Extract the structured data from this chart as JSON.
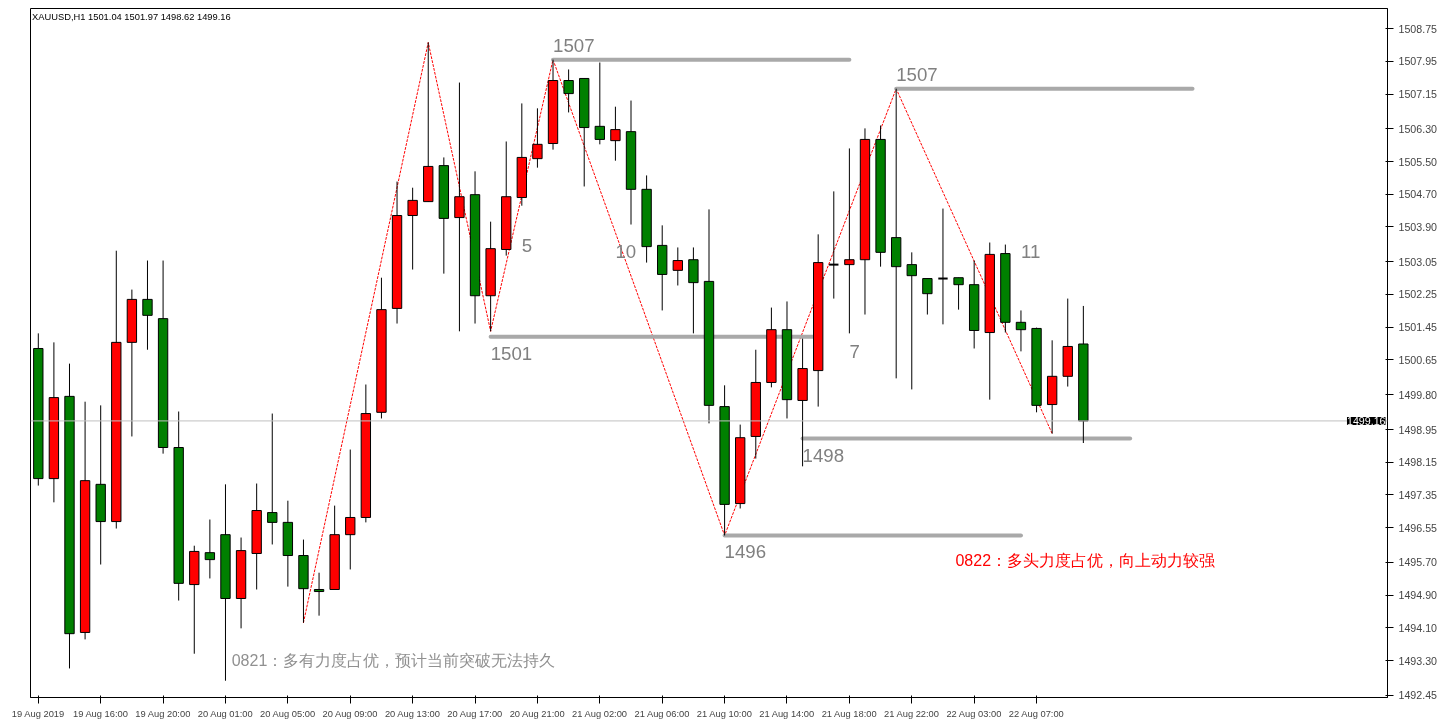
{
  "chart_data": {
    "type": "candlestick",
    "title": "XAUUSD,H1 1501.04 1501.97 1498.62 1499.16",
    "categories": [
      "19 Aug 2019",
      null,
      null,
      null,
      "19 Aug 16:00",
      null,
      null,
      null,
      "19 Aug 20:00",
      null,
      null,
      null,
      "20 Aug 01:00",
      null,
      null,
      null,
      "20 Aug 05:00",
      null,
      null,
      null,
      "20 Aug 09:00",
      null,
      null,
      null,
      "20 Aug 13:00",
      null,
      null,
      null,
      "20 Aug 17:00",
      null,
      null,
      null,
      "20 Aug 21:00",
      null,
      null,
      null,
      "21 Aug 02:00",
      null,
      null,
      null,
      "21 Aug 06:00",
      null,
      null,
      null,
      "21 Aug 10:00",
      null,
      null,
      null,
      "21 Aug 14:00",
      null,
      null,
      null,
      "21 Aug 18:00",
      null,
      null,
      null,
      "21 Aug 22:00",
      null,
      null,
      null,
      "22 Aug 03:00",
      null,
      null,
      null,
      "22 Aug 07:00",
      null,
      null,
      null,
      null,
      null,
      null,
      null,
      null,
      null,
      null,
      null,
      null,
      null,
      null,
      null,
      null,
      null,
      null,
      null,
      null,
      null,
      null
    ],
    "ohlc": [
      [
        1500.93,
        1501.3,
        1497.58,
        1497.75
      ],
      [
        1497.75,
        1501.08,
        1497.17,
        1499.73
      ],
      [
        1499.76,
        1500.56,
        1493.11,
        1493.96
      ],
      [
        1493.99,
        1499.63,
        1493.82,
        1497.7
      ],
      [
        1497.61,
        1499.54,
        1495.65,
        1496.7
      ],
      [
        1496.7,
        1503.32,
        1496.53,
        1501.08
      ],
      [
        1501.08,
        1502.37,
        1498.78,
        1502.13
      ],
      [
        1502.13,
        1503.08,
        1500.9,
        1501.74
      ],
      [
        1501.66,
        1503.08,
        1498.36,
        1498.51
      ],
      [
        1498.51,
        1499.39,
        1494.77,
        1495.19
      ],
      [
        1495.16,
        1496.11,
        1493.47,
        1495.97
      ],
      [
        1495.94,
        1496.75,
        1495.31,
        1495.77
      ],
      [
        1496.38,
        1497.61,
        1492.81,
        1494.82
      ],
      [
        1494.82,
        1496.31,
        1494.09,
        1495.99
      ],
      [
        1495.92,
        1497.63,
        1495.04,
        1496.97
      ],
      [
        1496.92,
        1499.34,
        1496.14,
        1496.68
      ],
      [
        1496.68,
        1497.21,
        1495.11,
        1495.87
      ],
      [
        1495.87,
        1496.26,
        1494.23,
        1495.06
      ],
      [
        1495.04,
        1495.45,
        1494.4,
        1494.99
      ],
      [
        1495.04,
        1497.09,
        1495.04,
        1496.38
      ],
      [
        1496.38,
        1498.46,
        1495.53,
        1496.8
      ],
      [
        1496.8,
        1500.05,
        1496.68,
        1499.34
      ],
      [
        1499.37,
        1502.66,
        1499.22,
        1501.88
      ],
      [
        1501.91,
        1505.01,
        1501.54,
        1504.18
      ],
      [
        1504.18,
        1504.86,
        1502.86,
        1504.55
      ],
      [
        1504.52,
        1508.41,
        1504.52,
        1505.38
      ],
      [
        1505.4,
        1505.6,
        1502.76,
        1504.11
      ],
      [
        1504.13,
        1507.43,
        1501.35,
        1504.64
      ],
      [
        1504.69,
        1505.26,
        1501.54,
        1502.22
      ],
      [
        1502.22,
        1504.03,
        1501.35,
        1503.37
      ],
      [
        1503.35,
        1505.99,
        1503.2,
        1504.64
      ],
      [
        1504.62,
        1506.92,
        1504.42,
        1505.6
      ],
      [
        1505.57,
        1506.8,
        1505.35,
        1505.92
      ],
      [
        1505.94,
        1507.99,
        1505.79,
        1507.48
      ],
      [
        1507.48,
        1507.75,
        1506.7,
        1507.16
      ],
      [
        1507.53,
        1507.53,
        1504.89,
        1506.33
      ],
      [
        1506.36,
        1507.92,
        1505.92,
        1506.04
      ],
      [
        1506.01,
        1506.84,
        1505.52,
        1506.28
      ],
      [
        1506.23,
        1506.99,
        1503.96,
        1504.82
      ],
      [
        1504.82,
        1505.16,
        1503.03,
        1503.42
      ],
      [
        1503.45,
        1503.94,
        1501.86,
        1502.74
      ],
      [
        1502.84,
        1503.4,
        1502.47,
        1503.08
      ],
      [
        1503.1,
        1503.4,
        1501.3,
        1502.54
      ],
      [
        1502.57,
        1504.33,
        1499.1,
        1499.54
      ],
      [
        1499.51,
        1500.03,
        1496.36,
        1497.12
      ],
      [
        1497.14,
        1499.07,
        1497.02,
        1498.75
      ],
      [
        1498.78,
        1500.9,
        1498.24,
        1500.1
      ],
      [
        1500.1,
        1501.93,
        1499.98,
        1501.39
      ],
      [
        1501.39,
        1502.08,
        1499.22,
        1499.68
      ],
      [
        1499.66,
        1501.17,
        1498.05,
        1500.44
      ],
      [
        1500.39,
        1503.72,
        1499.51,
        1503.03
      ],
      [
        1502.98,
        1504.77,
        1502.15,
        1502.98
      ],
      [
        1502.98,
        1505.82,
        1501.3,
        1503.1
      ],
      [
        1503.1,
        1506.31,
        1501.76,
        1506.04
      ],
      [
        1506.04,
        1506.38,
        1502.93,
        1503.28
      ],
      [
        1503.64,
        1507.28,
        1500.2,
        1502.93
      ],
      [
        1502.98,
        1503.28,
        1499.93,
        1502.71
      ],
      [
        1502.64,
        1502.64,
        1501.76,
        1502.27
      ],
      [
        1502.64,
        1504.35,
        1501.52,
        1502.64
      ],
      [
        1502.66,
        1502.66,
        1501.88,
        1502.49
      ],
      [
        1502.49,
        1503.08,
        1500.93,
        1501.37
      ],
      [
        1501.32,
        1503.52,
        1499.68,
        1503.23
      ],
      [
        1503.25,
        1503.47,
        1501.32,
        1501.57
      ],
      [
        1501.57,
        1501.86,
        1500.86,
        1501.39
      ],
      [
        1501.42,
        1501.44,
        1499.37,
        1499.54
      ],
      [
        1499.56,
        1501.13,
        1498.85,
        1500.25
      ],
      [
        1500.25,
        1502.15,
        1500.0,
        1500.98
      ],
      [
        1501.04,
        1501.97,
        1498.62,
        1499.16
      ],
      null,
      null,
      null,
      null,
      null,
      null,
      null,
      null,
      null,
      null,
      null,
      null,
      null,
      null,
      null,
      null,
      null,
      null,
      null
    ],
    "colors": [
      "#008000",
      "#ff0000",
      "#008000",
      "#ff0000",
      "#008000",
      "#ff0000",
      "#ff0000",
      "#008000",
      "#008000",
      "#008000",
      "#ff0000",
      "#008000",
      "#008000",
      "#ff0000",
      "#ff0000",
      "#008000",
      "#008000",
      "#008000",
      "#008000",
      "#ff0000",
      "#ff0000",
      "#ff0000",
      "#ff0000",
      "#ff0000",
      "#ff0000",
      "#ff0000",
      "#008000",
      "#ff0000",
      "#008000",
      "#ff0000",
      "#ff0000",
      "#ff0000",
      "#ff0000",
      "#ff0000",
      "#008000",
      "#008000",
      "#008000",
      "#ff0000",
      "#008000",
      "#008000",
      "#008000",
      "#ff0000",
      "#008000",
      "#008000",
      "#008000",
      "#ff0000",
      "#ff0000",
      "#ff0000",
      "#008000",
      "#ff0000",
      "#ff0000",
      "#000000",
      "#ff0000",
      "#ff0000",
      "#008000",
      "#008000",
      "#008000",
      "#008000",
      "#000000",
      "#008000",
      "#008000",
      "#ff0000",
      "#008000",
      "#008000",
      "#008000",
      "#ff0000",
      "#ff0000",
      "#008000",
      null,
      null,
      null,
      null,
      null,
      null,
      null,
      null,
      null,
      null,
      null,
      null,
      null,
      null,
      null,
      null,
      null,
      null,
      null
    ],
    "series": [
      {
        "type": "line",
        "color": "#ff0000",
        "line_style": "dotted",
        "values": [
          null,
          null,
          null,
          null,
          null,
          null,
          null,
          null,
          null,
          null,
          null,
          null,
          null,
          null,
          null,
          null,
          null,
          1494.23,
          null,
          null,
          null,
          null,
          null,
          null,
          null,
          1508.41,
          null,
          null,
          null,
          1501.35,
          null,
          null,
          null,
          1507.99,
          null,
          null,
          null,
          null,
          null,
          null,
          null,
          null,
          null,
          null,
          1496.36,
          null,
          null,
          null,
          null,
          null,
          null,
          null,
          null,
          null,
          null,
          1507.28,
          null,
          null,
          null,
          null,
          null,
          null,
          null,
          null,
          null,
          1498.85,
          null,
          null,
          null,
          null,
          null,
          null,
          null,
          null,
          null,
          null,
          null,
          null,
          null,
          null,
          null,
          null,
          null,
          null,
          null,
          null,
          null
        ]
      },
      {
        "type": "line",
        "name": "1507",
        "color": "#a9a9a9",
        "line_style": "solid",
        "values": [
          null,
          null,
          null,
          null,
          null,
          null,
          null,
          null,
          null,
          null,
          null,
          null,
          null,
          null,
          null,
          null,
          null,
          null,
          null,
          null,
          null,
          null,
          null,
          null,
          null,
          null,
          null,
          null,
          null,
          null,
          null,
          null,
          null,
          1507.99,
          1507.99,
          1507.99,
          1507.99,
          1507.99,
          1507.99,
          1507.99,
          1507.99,
          1507.99,
          1507.99,
          1507.99,
          1507.99,
          1507.99,
          1507.99,
          1507.99,
          1507.99,
          1507.99,
          1507.99,
          1507.99,
          1507.99,
          null,
          null,
          null,
          null,
          null,
          null,
          null,
          null,
          null,
          null,
          null,
          null,
          null,
          null,
          null,
          null,
          null,
          null,
          null,
          null,
          null,
          null,
          null,
          null,
          null,
          null,
          null,
          null,
          null,
          null,
          null,
          null,
          null,
          null
        ]
      },
      {
        "type": "line",
        "name": "1501",
        "color": "#a9a9a9",
        "line_style": "solid",
        "values": [
          null,
          null,
          null,
          null,
          null,
          null,
          null,
          null,
          null,
          null,
          null,
          null,
          null,
          null,
          null,
          null,
          null,
          null,
          null,
          null,
          null,
          null,
          null,
          null,
          null,
          null,
          null,
          null,
          null,
          1501.22,
          1501.22,
          1501.22,
          1501.22,
          1501.22,
          1501.22,
          1501.22,
          1501.22,
          1501.22,
          1501.22,
          1501.22,
          1501.22,
          1501.22,
          1501.22,
          1501.22,
          1501.22,
          1501.22,
          1501.22,
          null,
          null,
          1501.22,
          1501.22,
          null,
          null,
          null,
          null,
          null,
          null,
          null,
          null,
          null,
          null,
          null,
          null,
          null,
          null,
          null,
          null,
          null,
          null,
          null,
          null,
          null,
          null,
          null,
          null,
          null,
          null,
          null,
          null,
          null,
          null,
          null,
          null,
          null,
          null,
          null,
          null
        ]
      },
      {
        "type": "line",
        "name": "1496",
        "color": "#a9a9a9",
        "line_style": "solid",
        "values": [
          null,
          null,
          null,
          null,
          null,
          null,
          null,
          null,
          null,
          null,
          null,
          null,
          null,
          null,
          null,
          null,
          null,
          null,
          null,
          null,
          null,
          null,
          null,
          null,
          null,
          null,
          null,
          null,
          null,
          null,
          null,
          null,
          null,
          null,
          null,
          null,
          null,
          null,
          null,
          null,
          null,
          null,
          null,
          null,
          1496.36,
          1496.36,
          1496.36,
          1496.36,
          1496.36,
          1496.36,
          1496.36,
          1496.36,
          1496.36,
          1496.36,
          1496.36,
          1496.36,
          1496.36,
          1496.36,
          1496.36,
          1496.36,
          1496.36,
          1496.36,
          1496.36,
          1496.36,
          null,
          null,
          null,
          null,
          null,
          null,
          null,
          null,
          null,
          null,
          null,
          null,
          null,
          null,
          null,
          null,
          null,
          null,
          null,
          null,
          null,
          null,
          null
        ]
      },
      {
        "type": "line",
        "name": "1498",
        "color": "#a9a9a9",
        "line_style": "solid",
        "values": [
          null,
          null,
          null,
          null,
          null,
          null,
          null,
          null,
          null,
          null,
          null,
          null,
          null,
          null,
          null,
          null,
          null,
          null,
          null,
          null,
          null,
          null,
          null,
          null,
          null,
          null,
          null,
          null,
          null,
          null,
          null,
          null,
          null,
          null,
          null,
          null,
          null,
          null,
          null,
          null,
          null,
          null,
          null,
          null,
          null,
          null,
          null,
          null,
          null,
          1498.73,
          1498.73,
          1498.73,
          1498.73,
          1498.73,
          1498.73,
          1498.73,
          1498.73,
          1498.73,
          1498.73,
          1498.73,
          1498.73,
          1498.73,
          1498.73,
          1498.73,
          1498.73,
          1498.73,
          1498.73,
          1498.73,
          1498.73,
          1498.73,
          1498.73,
          null,
          null,
          null,
          null,
          null,
          null,
          null,
          null,
          null,
          null,
          null,
          null,
          null,
          null,
          null,
          null
        ]
      },
      {
        "type": "line",
        "name": "1507",
        "color": "#a9a9a9",
        "line_style": "solid",
        "values": [
          null,
          null,
          null,
          null,
          null,
          null,
          null,
          null,
          null,
          null,
          null,
          null,
          null,
          null,
          null,
          null,
          null,
          null,
          null,
          null,
          null,
          null,
          null,
          null,
          null,
          null,
          null,
          null,
          null,
          null,
          null,
          null,
          null,
          null,
          null,
          null,
          null,
          null,
          null,
          null,
          null,
          null,
          null,
          null,
          null,
          null,
          null,
          null,
          null,
          null,
          null,
          null,
          null,
          null,
          null,
          1507.28,
          1507.28,
          1507.28,
          1507.28,
          1507.28,
          1507.28,
          1507.28,
          1507.28,
          1507.28,
          1507.28,
          1507.28,
          1507.28,
          1507.28,
          1507.28,
          1507.28,
          1507.28,
          1507.28,
          1507.28,
          1507.28,
          1507.28,
          null,
          null,
          null,
          null,
          null,
          null,
          null,
          null,
          null,
          null,
          null,
          null
        ]
      }
    ],
    "ylim": [
      1492.4,
      1509.24
    ],
    "yticks": [
      1508.75,
      1507.95,
      1507.15,
      {
        "value": 1506.3,
        "label": "1506.30"
      },
      {
        "value": 1505.5,
        "label": "1505.50"
      },
      {
        "value": 1504.7,
        "label": "1504.70"
      },
      {
        "value": 1503.9,
        "label": "1503.90"
      },
      1503.05,
      1502.25,
      1501.45,
      1500.65,
      {
        "value": 1499.8,
        "label": "1499.80"
      },
      1498.95,
      1498.15,
      1497.35,
      1496.55,
      {
        "value": 1495.7,
        "label": "1495.70"
      },
      {
        "value": 1494.9,
        "label": "1494.90"
      },
      {
        "value": 1494.1,
        "label": "1494.10"
      },
      {
        "value": 1493.3,
        "label": "1493.30"
      },
      1492.45
    ],
    "ref_lines": [
      {
        "axis": "y",
        "value": 1499.16,
        "label": "1499.16",
        "color": "#c0c0c0"
      }
    ],
    "annotations": [
      "5",
      "10",
      "7",
      "11",
      "0821：多有力度占优，预计当前突破无法持久",
      "0822：多头力度占优，向上动力较强"
    ],
    "grid": false
  }
}
